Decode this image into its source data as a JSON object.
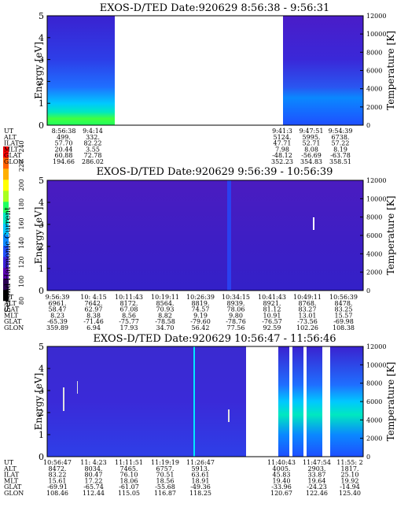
{
  "colorbar": {
    "label": "Second Harmonic Current",
    "ticks": [
      "80",
      "100",
      "120",
      "140",
      "160",
      "180",
      "200",
      "220",
      "240"
    ],
    "colors": [
      "#000000",
      "#2b0052",
      "#5a00b0",
      "#3a1fd8",
      "#1f4fff",
      "#0a88ff",
      "#00c8ff",
      "#00e8c0",
      "#20ff60",
      "#a8ff20",
      "#ffff00",
      "#ffb000",
      "#ff6000",
      "#ff0000"
    ]
  },
  "chart_data": [
    {
      "type": "heatmap",
      "title": "EXOS-D/TED   Date:920629   8:56:38 - 9:56:31",
      "ylabel": "Energy [eV]",
      "y2label": "Temperature [K]",
      "ylim": [
        0,
        5
      ],
      "y2lim": [
        0,
        12000
      ],
      "yticks": [
        "0",
        "1",
        "2",
        "3",
        "4",
        "5"
      ],
      "y2ticks": [
        "0",
        "2000",
        "4000",
        "6000",
        "8000",
        "10000",
        "12000"
      ],
      "row_labels": [
        "UT",
        "ALT",
        "ILAT",
        "MLT",
        "GLAT",
        "GLON"
      ],
      "columns": [
        [
          "8:56:38",
          "499.",
          "57.70",
          "20.44",
          "60.88",
          "194.66"
        ],
        [
          "9:4:14",
          "332.",
          "82.22",
          "3.55",
          "72.78",
          "286.02"
        ],
        [
          "9:41:3",
          "5124.",
          "47.71",
          "7.98",
          "-48.12",
          "352.23"
        ],
        [
          "9:47:51",
          "5995.",
          "52.71",
          "8.08",
          "-56.69",
          "354.83"
        ],
        [
          "9:54:39",
          "6738.",
          "57.22",
          "8.19",
          "-63.78",
          "358.51"
        ]
      ],
      "data_segments": [
        {
          "from": "8:56:38",
          "to": "9:4:14",
          "low_energy": "green-yellow",
          "high_energy": "blue-violet"
        },
        {
          "from": "9:41:3",
          "to": "9:54:39",
          "low_energy": "blue",
          "high_energy": "blue-violet"
        }
      ]
    },
    {
      "type": "heatmap",
      "title": "EXOS-D/TED   Date:920629   9:56:39 - 10:56:39",
      "ylabel": "Energy [eV]",
      "y2label": "Temperature [K]",
      "ylim": [
        0,
        5
      ],
      "y2lim": [
        0,
        12000
      ],
      "yticks": [
        "0",
        "1",
        "2",
        "3",
        "4",
        "5"
      ],
      "y2ticks": [
        "0",
        "2000",
        "4000",
        "6000",
        "8000",
        "10000",
        "12000"
      ],
      "row_labels": [
        "UT",
        "ALT",
        "ILAT",
        "MLT",
        "GLAT",
        "GLON"
      ],
      "columns": [
        [
          "9:56:39",
          "6961.",
          "58.47",
          "8.23",
          "-65.39",
          "359.89"
        ],
        [
          "10: 4:15",
          "7642.",
          "62.97",
          "8.38",
          "-71.46",
          "6.94"
        ],
        [
          "10:11:43",
          "8172.",
          "67.08",
          "8.56",
          "-75.77",
          "17.93"
        ],
        [
          "10:19:11",
          "8564.",
          "70.93",
          "8.82",
          "-78.58",
          "34.70"
        ],
        [
          "10:26:39",
          "8819.",
          "74.57",
          "9.19",
          "-79.60",
          "56.42"
        ],
        [
          "10:34:15",
          "8939.",
          "78.06",
          "9.80",
          "-78.76",
          "77.56"
        ],
        [
          "10:41:43",
          "8921.",
          "81.12",
          "10.91",
          "-76.57",
          "92.59"
        ],
        [
          "10:49:11",
          "8768.",
          "83.27",
          "13.01",
          "-73.56",
          "102.26"
        ],
        [
          "10:56:39",
          "8478.",
          "83.25",
          "15.57",
          "-69.98",
          "108.38"
        ]
      ]
    },
    {
      "type": "heatmap",
      "title": "EXOS-D/TED   Date:920629   10:56:47 - 11:56:46",
      "ylabel": "Energy [eV]",
      "y2label": "Temperature [K]",
      "ylim": [
        0,
        5
      ],
      "y2lim": [
        0,
        12000
      ],
      "yticks": [
        "0",
        "1",
        "2",
        "3",
        "4",
        "5"
      ],
      "y2ticks": [
        "0",
        "2000",
        "4000",
        "6000",
        "8000",
        "10000",
        "12000"
      ],
      "row_labels": [
        "UT",
        "ALT",
        "ILAT",
        "MLT",
        "GLAT",
        "GLON"
      ],
      "columns": [
        [
          "10:56:47",
          "8472.",
          "83.22",
          "15.61",
          "-69.91",
          "108.46"
        ],
        [
          "11: 4:23",
          "8034.",
          "80.47",
          "17.22",
          "-65.74",
          "112.44"
        ],
        [
          "11:11:51",
          "7465.",
          "76.10",
          "18.06",
          "-61.07",
          "115.05"
        ],
        [
          "11:19:19",
          "6757.",
          "70.51",
          "18.56",
          "-55.68",
          "116.87"
        ],
        [
          "11:26:47",
          "5913.",
          "63.61",
          "18.91",
          "-49.36",
          "118.25"
        ],
        [
          "11:40:43",
          "4005.",
          "45.83",
          "19.40",
          "-33.96",
          "120.67"
        ],
        [
          "11:47:54",
          "2903.",
          "33.87",
          "19.64",
          "-24.23",
          "122.46"
        ],
        [
          "11:55: 2",
          "1817.",
          "25.10",
          "19.92",
          "-14.94",
          "125.40"
        ]
      ]
    }
  ]
}
